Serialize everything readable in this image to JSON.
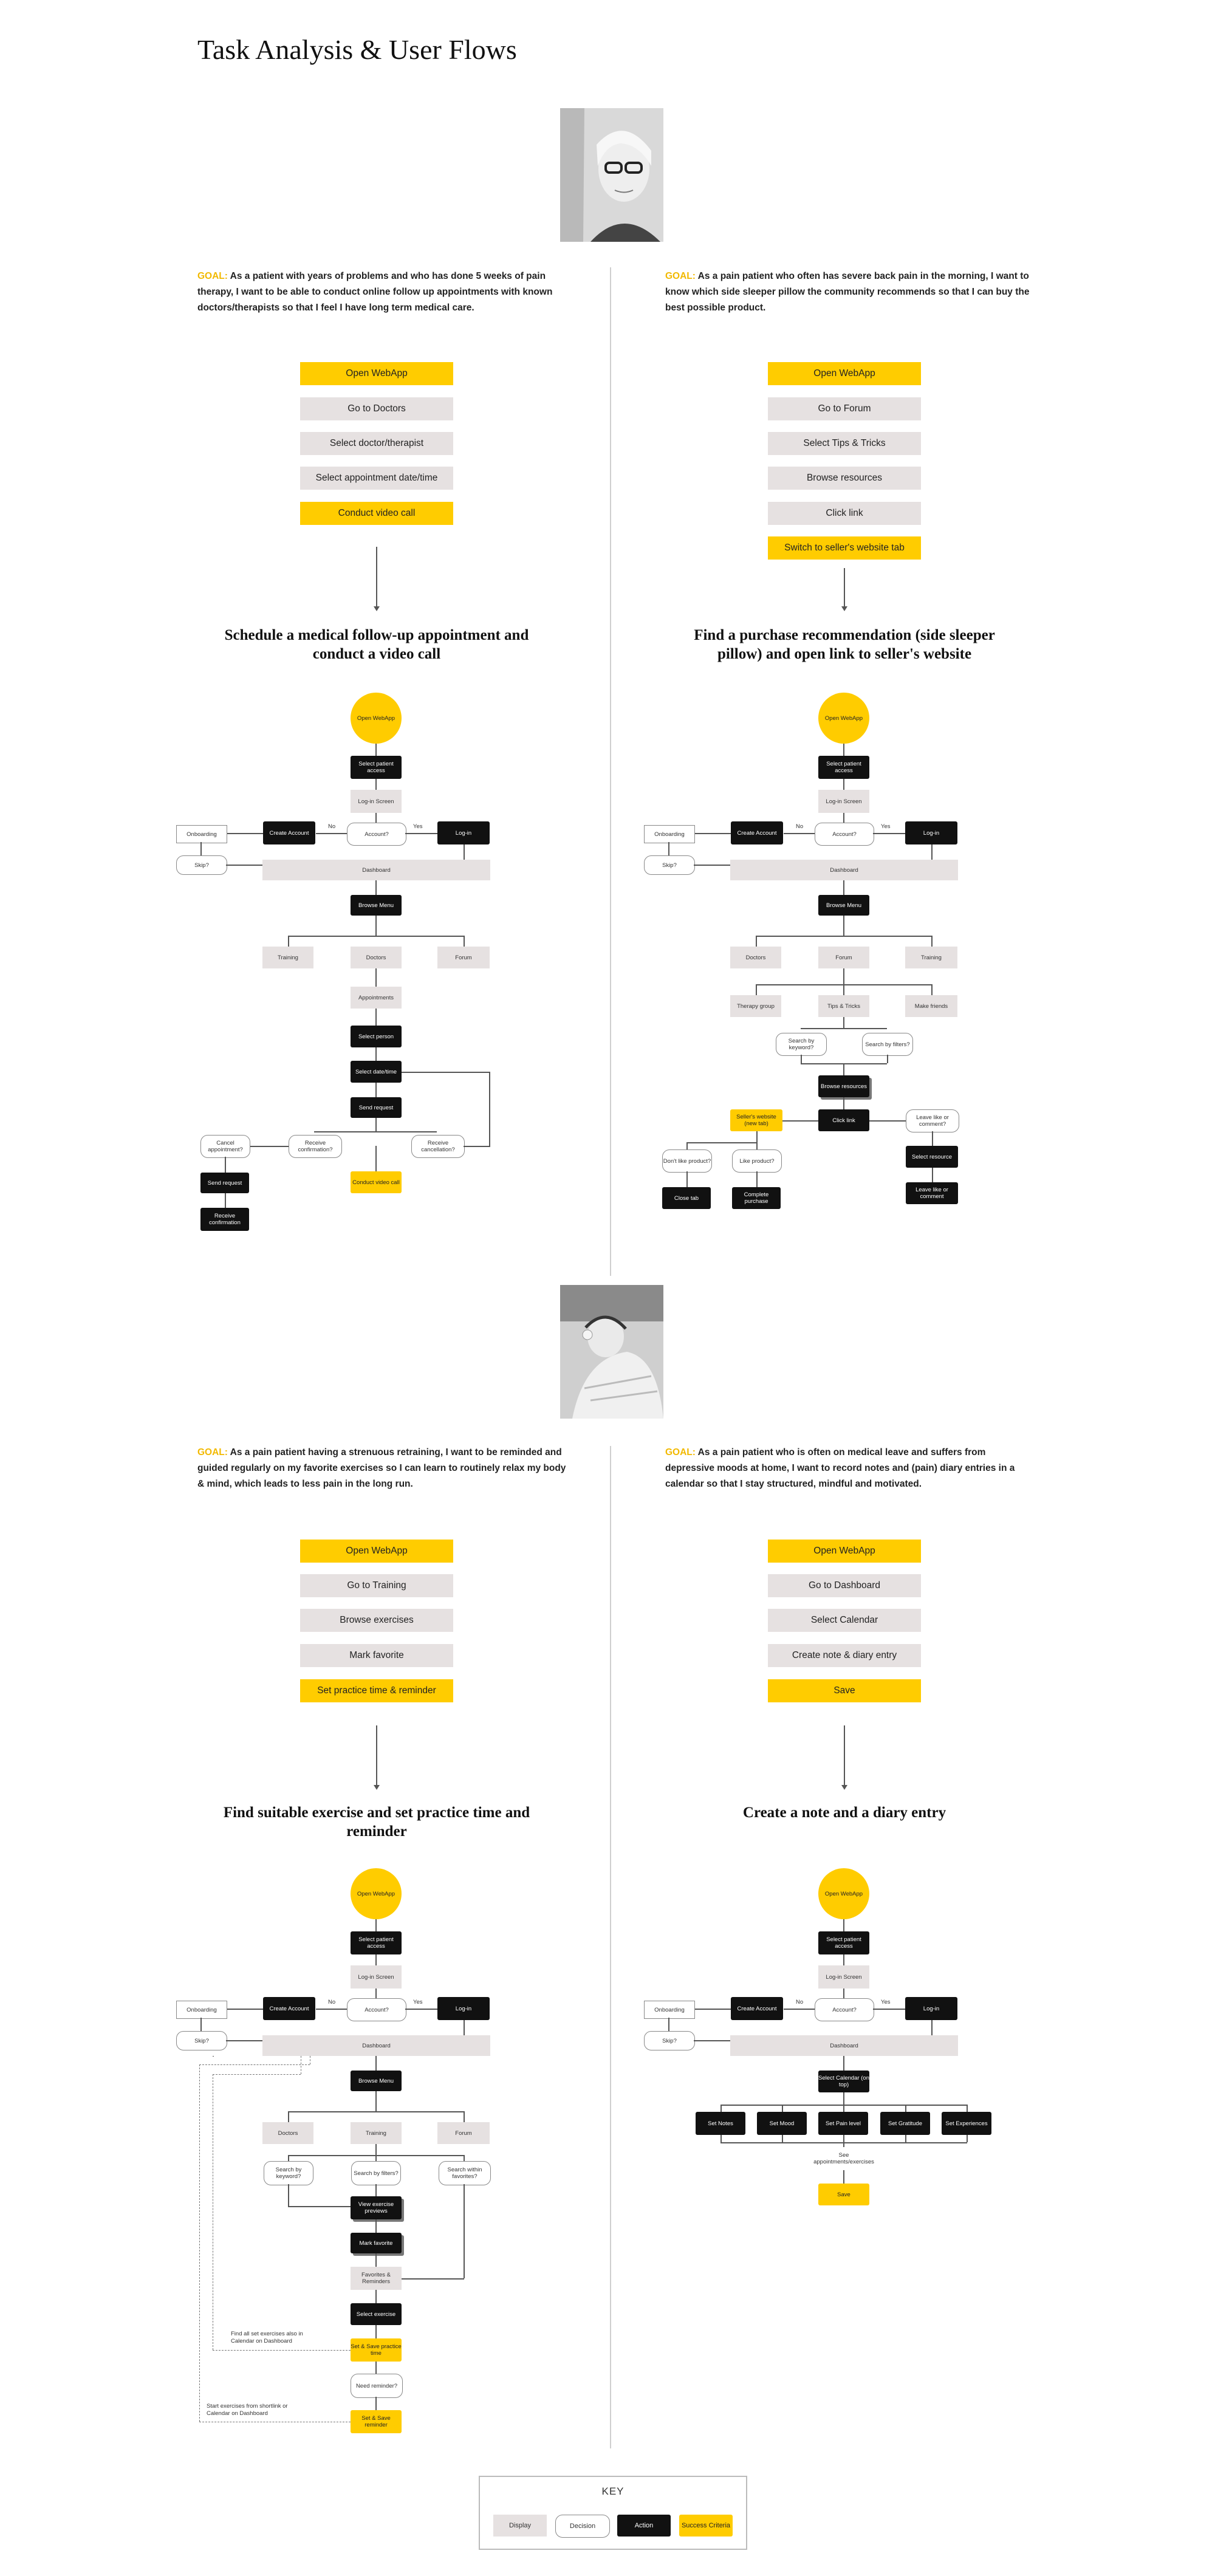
{
  "page_title": "Task Analysis & User Flows",
  "persona_photos": [
    "elderly woman portrait",
    "young woman lying in bed"
  ],
  "flows": [
    {
      "goal_label": "GOAL:",
      "goal_text": "As a patient with years of problems and who has done 5 weeks of pain therapy, I want to be able to conduct online follow up appointments with known doctors/therapists so that I feel I have long term medical care.",
      "task_steps": [
        {
          "label": "Open WebApp",
          "type": "success"
        },
        {
          "label": "Go to Doctors",
          "type": "display"
        },
        {
          "label": "Select doctor/therapist",
          "type": "display"
        },
        {
          "label": "Select appointment date/time",
          "type": "display"
        },
        {
          "label": "Conduct video call",
          "type": "success"
        }
      ],
      "title": "Schedule a medical follow-up appointment and conduct a video call"
    },
    {
      "goal_label": "GOAL:",
      "goal_text": "As a pain patient who often has severe back pain in the morning, I want to know which side sleeper pillow the community recommends so that I can buy the best possible product.",
      "task_steps": [
        {
          "label": "Open WebApp",
          "type": "success"
        },
        {
          "label": "Go to Forum",
          "type": "display"
        },
        {
          "label": "Select Tips & Tricks",
          "type": "display"
        },
        {
          "label": "Browse resources",
          "type": "display"
        },
        {
          "label": "Click link",
          "type": "display"
        },
        {
          "label": "Switch to seller's website tab",
          "type": "success"
        }
      ],
      "title": "Find a purchase recommendation (side sleeper pillow) and open link to seller's website"
    },
    {
      "goal_label": "GOAL:",
      "goal_text": "As a pain patient having a strenuous retraining, I want to be reminded and guided regularly on my favorite exercises so I can learn to routinely relax my body & mind, which leads to less pain in the long run.",
      "task_steps": [
        {
          "label": "Open WebApp",
          "type": "success"
        },
        {
          "label": "Go to Training",
          "type": "display"
        },
        {
          "label": "Browse exercises",
          "type": "display"
        },
        {
          "label": "Mark favorite",
          "type": "display"
        },
        {
          "label": "Set practice time & reminder",
          "type": "success"
        }
      ],
      "title": "Find suitable exercise and set practice time and reminder"
    },
    {
      "goal_label": "GOAL:",
      "goal_text": "As a pain patient who is often on medical leave and suffers from depressive moods at home, I want to record notes and (pain) diary entries in a calendar so that I stay structured, mindful and motivated.",
      "task_steps": [
        {
          "label": "Open WebApp",
          "type": "success"
        },
        {
          "label": "Go to Dashboard",
          "type": "display"
        },
        {
          "label": "Select Calendar",
          "type": "display"
        },
        {
          "label": "Create note & diary entry",
          "type": "display"
        },
        {
          "label": "Save",
          "type": "success"
        }
      ],
      "title": "Create a note and a diary entry"
    }
  ],
  "common": {
    "open_webapp": "Open WebApp",
    "select_access": "Select patient access",
    "login_screen": "Log-in Screen",
    "account": "Account?",
    "no": "No",
    "yes": "Yes",
    "create_account": "Create Account",
    "log_in": "Log-in",
    "onboarding": "Onboarding",
    "skip": "Skip?",
    "dashboard": "Dashboard",
    "browse_menu": "Browse Menu",
    "training": "Training",
    "doctors": "Doctors",
    "forum": "Forum"
  },
  "diagram1": {
    "appointments": "Appointments",
    "select_person": "Select person",
    "select_datetime": "Select date/time",
    "send_request": "Send request",
    "receive_confirmation": "Receive confirmation?",
    "receive_cancellation": "Receive cancellation?",
    "cancel_appointment": "Cancel appointment?",
    "send_request2": "Send request",
    "receive_confirmation2": "Receive confirmation",
    "conduct_video_call": "Conduct video call"
  },
  "diagram2": {
    "therapy_group": "Therapy group",
    "tips_tricks": "Tips & Tricks",
    "make_friends": "Make friends",
    "search_keyword": "Search by keyword?",
    "search_filters": "Search by filters?",
    "browse_resources": "Browse resources",
    "click_link": "Click link",
    "sellers_website": "Seller's website (new tab)",
    "leave_like": "Leave like or comment?",
    "select_resource": "Select resource",
    "leave_like2": "Leave like or comment",
    "dont_like": "Don't like product?",
    "like_product": "Like product?",
    "close_tab": "Close tab",
    "complete_purchase": "Complete purchase"
  },
  "diagram3": {
    "search_keyword": "Search by keyword?",
    "search_filters": "Search by filters?",
    "search_favorites": "Search within favorites?",
    "view_previews": "View exercise previews",
    "mark_favorite": "Mark favorite",
    "favorites_reminders": "Favorites & Reminders",
    "select_exercise": "Select exercise",
    "set_save_time": "Set & Save practice time",
    "need_reminder": "Need reminder?",
    "set_save_reminder": "Set & Save reminder",
    "note1": "Find all set exercises also in Calendar on Dashboard",
    "note2": "Start exercises from shortlink or Calendar on Dashboard"
  },
  "diagram4": {
    "select_calendar": "Select Calendar (on top)",
    "set_notes": "Set Notes",
    "set_mood": "Set Mood",
    "set_pain": "Set Pain level",
    "set_gratitude": "Set Gratitude",
    "set_experiences": "Set Experiences",
    "see_appointments": "See appointments/exercises",
    "save": "Save"
  },
  "key": {
    "title": "KEY",
    "items": [
      "Display",
      "Decision",
      "Action",
      "Success Criteria"
    ]
  },
  "colors": {
    "accent": "#ffcc00",
    "display": "#e6e1e1",
    "action": "#111111"
  }
}
